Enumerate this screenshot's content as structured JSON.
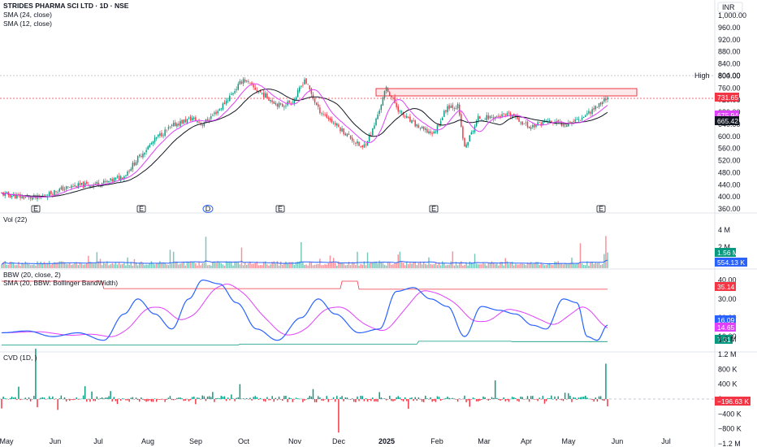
{
  "header": {
    "title": "STRIDES PHARMA SCI LTD · 1D · NSE",
    "sma24": "SMA (24, close)",
    "sma12": "SMA (12, close)",
    "currency": "INR"
  },
  "colors": {
    "up": "#089981",
    "down": "#f23645",
    "sma24": "#131722",
    "sma12": "#e040fb",
    "bbw": "#2962ff",
    "bbw_sma": "#e040fb",
    "volume_ma": "#2962ff",
    "resistance": "#f23645"
  },
  "chart_data": [
    {
      "name": "price",
      "type": "candlestick",
      "ylim": [
        360,
        1000
      ],
      "y_ticks": [
        "1,000.00",
        "960.00",
        "920.00",
        "880.00",
        "840.00",
        "800.00",
        "760.00",
        "720.00",
        "680.00",
        "640.00",
        "600.00",
        "560.00",
        "520.00",
        "480.00",
        "440.00",
        "400.00",
        "360.00"
      ],
      "high_label": "High",
      "high_value": "804.00",
      "last_price": "731.65",
      "sma12_value": "675.94",
      "sma24_value": "665.42",
      "resistance_zone": [
        740,
        756
      ],
      "events": [
        "E",
        "E",
        "D",
        "E",
        "E",
        "E"
      ],
      "series": [
        {
          "name": "SMA (24, close)",
          "values": [
            415,
            425,
            470,
            560,
            640,
            720,
            768,
            720,
            690,
            672,
            665
          ]
        },
        {
          "name": "SMA (12, close)",
          "values": [
            410,
            420,
            480,
            580,
            650,
            740,
            760,
            705,
            680,
            675,
            676
          ]
        }
      ]
    },
    {
      "name": "volume",
      "type": "bar",
      "title": "Vol (22)",
      "y_ticks": [
        "4 M",
        "2 M"
      ],
      "last_value": "1.56 M",
      "ma_value": "554.13 K"
    },
    {
      "name": "bbw",
      "type": "line",
      "title": "BBW (20, close, 2)",
      "subtitle": "SMA (20, BBW: Bollinger BandWidth)",
      "ylim": [
        4,
        42
      ],
      "y_ticks": [
        "40.00",
        "30.00",
        "20.00",
        "10.00"
      ],
      "upper_value": "35.14",
      "bbw_value": "16.09",
      "sma_value": "14.65",
      "lower_value": "7.31"
    },
    {
      "name": "cvd",
      "type": "bar",
      "title": "CVD (1D, )",
      "y_ticks": [
        "1.6 M",
        "1.2 M",
        "800 K",
        "400 K",
        "0",
        "−400 K",
        "−800 K",
        "−1.2 M"
      ],
      "last_value": "−196.63 K"
    }
  ],
  "x_axis": {
    "labels": [
      "May",
      "Jun",
      "Jul",
      "Aug",
      "Sep",
      "Oct",
      "Nov",
      "Dec",
      "2025",
      "Feb",
      "Mar",
      "Apr",
      "May",
      "Jun",
      "Jul"
    ]
  }
}
